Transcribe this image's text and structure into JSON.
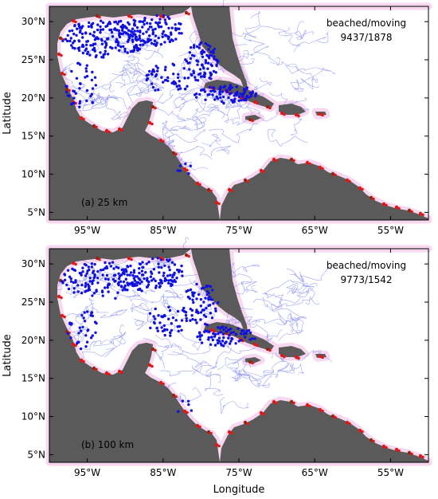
{
  "figure": {
    "xlabel": "Longitude",
    "ylabel": "Latitude",
    "x_ticks": [
      "95°W",
      "85°W",
      "75°W",
      "65°W",
      "55°W"
    ],
    "y_ticks": [
      "30°N",
      "25°N",
      "20°N",
      "15°N",
      "10°N",
      "5°N"
    ],
    "colors": {
      "land": "#5a5a5a",
      "ocean": "#ffffff",
      "moving": "#1010e0",
      "trajectory": "#8a8ff0",
      "beached": "#e01818",
      "beached_dark": "#8b2a10",
      "halo": "#f8d8f0"
    }
  },
  "panels": [
    {
      "label": "(a) 25 km",
      "status_label": "beached/moving",
      "status_value": "9437/1878"
    },
    {
      "label": "(b) 100 km",
      "status_label": "beached/moving",
      "status_value": "9773/1542"
    }
  ],
  "chart_data": {
    "type": "scatter",
    "x_range": [
      -100,
      -50
    ],
    "y_range": [
      4,
      32
    ],
    "xlabel": "Longitude",
    "ylabel": "Latitude",
    "x_ticks": [
      -95,
      -85,
      -75,
      -65,
      -55
    ],
    "y_ticks": [
      30,
      25,
      20,
      15,
      10,
      5
    ],
    "grid": false,
    "series": [
      {
        "panel": "(a) 25 km",
        "beached": 9437,
        "moving": 1878
      },
      {
        "panel": "(b) 100 km",
        "beached": 9773,
        "moving": 1542
      }
    ]
  }
}
